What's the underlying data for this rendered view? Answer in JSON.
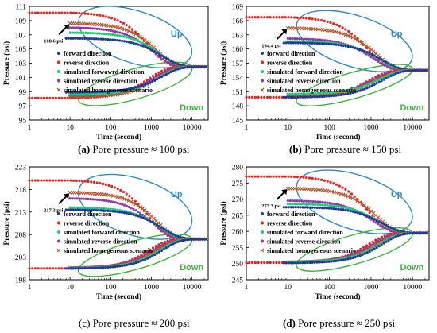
{
  "legend_labels": {
    "forward": "forward direction",
    "reverse": "reverse direction",
    "sim_forward": "simulated forward direction",
    "sim_reverse": "simulated reverse direction",
    "sim_homogeneous": "simulated homogeneous scenario"
  },
  "series_colors": {
    "forward": "#1f3a93",
    "reverse": "#e8221e",
    "sim_forward": "#22c97a",
    "sim_reverse": "#8e3aa8",
    "sim_homogeneous": "#b5532a"
  },
  "ellipse_colors": {
    "up": "#2e8bc0",
    "down": "#3fb23f"
  },
  "chart_data": [
    {
      "type": "scatter",
      "caption_letter": "(a)",
      "caption_text": " Pore pressure ≈ 100 psi",
      "xlabel": "Time (second)",
      "ylabel": "Pressure (psi)",
      "xscale": "log",
      "xlim": [
        1,
        25000
      ],
      "ylim": [
        95,
        111
      ],
      "xticks": [
        1,
        10,
        100,
        1000,
        10000
      ],
      "xtick_labels": [
        "1",
        "10",
        "100",
        "1000",
        "10000"
      ],
      "yticks": [
        95,
        97,
        99,
        101,
        103,
        105,
        107,
        109,
        111
      ],
      "ytick_labels": [
        "95",
        "97",
        "99",
        "101",
        "103",
        "105",
        "107",
        "109",
        "111"
      ],
      "legend_labels": [
        "forward direction",
        "reverse direction",
        "simulated forwawrd direction",
        "simulated reverse direction",
        "simulated homogeneous scenario"
      ],
      "annotation": "108.6 psi",
      "annotation_point": [
        10,
        108.6
      ],
      "up_label": "Up",
      "down_label": "Down",
      "final": 102.5,
      "up_series": {
        "reverse": 110.1,
        "sim_reverse": 108,
        "sim_homogeneous": 108.6,
        "sim_forward": 107.3,
        "forward": 106.5
      },
      "down_series": {
        "reverse": 98.1,
        "sim_reverse": 98.3,
        "sim_homogeneous": 98.2,
        "sim_forward": 98.6,
        "forward": 98.9
      }
    },
    {
      "type": "scatter",
      "caption_letter": "(b)",
      "caption_text": " Pore pressure ≈ 150 psi",
      "xlabel": "Time (second)",
      "ylabel": "Pressure (psi)",
      "xscale": "log",
      "xlim": [
        1,
        25000
      ],
      "ylim": [
        145,
        169
      ],
      "xticks": [
        1,
        10,
        100,
        1000,
        10000
      ],
      "xtick_labels": [
        "1",
        "10",
        "100",
        "1000",
        "10000"
      ],
      "yticks": [
        145,
        148,
        151,
        154,
        157,
        160,
        163,
        166,
        169
      ],
      "ytick_labels": [
        "145",
        "148",
        "151",
        "154",
        "157",
        "160",
        "163",
        "166",
        "169"
      ],
      "legend_labels": [
        "forward direction",
        "reverse direction",
        "simulated forward direction",
        "simulated reverse direction",
        "simulated homogeneous scenario"
      ],
      "annotation": "164.4 psi",
      "annotation_point": [
        10,
        164.4
      ],
      "up_label": "Up",
      "down_label": "Down",
      "final": 155.5,
      "up_series": {
        "reverse": 166.7,
        "sim_reverse": 162.2,
        "sim_homogeneous": 164.4,
        "sim_forward": 161.6,
        "forward": 161.3
      },
      "down_series": {
        "reverse": 149.8,
        "sim_reverse": 150.2,
        "sim_homogeneous": 150.0,
        "sim_forward": 150.5,
        "forward": 149.8
      }
    },
    {
      "type": "scatter",
      "caption_letter": "(c)",
      "caption_text": " Pore pressure ≈ 200 psi",
      "xlabel": "Time (second)",
      "ylabel": "Pressure (psi)",
      "xscale": "log",
      "xlim": [
        1,
        25000
      ],
      "ylim": [
        198,
        223
      ],
      "xticks": [
        1,
        10,
        100,
        1000,
        10000
      ],
      "xtick_labels": [
        "1",
        "10",
        "100",
        "1000",
        "10000"
      ],
      "yticks": [
        198,
        203,
        208,
        213,
        218,
        223
      ],
      "ytick_labels": [
        "198",
        "203",
        "208",
        "213",
        "218",
        "223"
      ],
      "legend_labels": [
        "forward direction",
        "reverse direction",
        "simulated forward direction",
        "simulated reverse direction",
        "simulated homogeneous scenario"
      ],
      "annotation": "217.3 psi",
      "annotation_point": [
        10,
        217.3
      ],
      "up_label": "Up",
      "down_label": "Down",
      "final": 207,
      "up_series": {
        "reverse": 220,
        "sim_reverse": 216,
        "sim_homogeneous": 217.3,
        "sim_forward": 214,
        "forward": 213.5
      },
      "down_series": {
        "reverse": 200.5,
        "sim_reverse": 200.7,
        "sim_homogeneous": 200.6,
        "sim_forward": 200.6,
        "forward": 200.5
      }
    },
    {
      "type": "scatter",
      "caption_letter": "(d)",
      "caption_text": " Pore pressure ≈ 250 psi",
      "xlabel": "Time (second)",
      "ylabel": "Pressure (psi)",
      "xscale": "log",
      "xlim": [
        1,
        25000
      ],
      "ylim": [
        245,
        280
      ],
      "xticks": [
        1,
        10,
        100,
        1000,
        10000
      ],
      "xtick_labels": [
        "1",
        "10",
        "100",
        "1000",
        "10000"
      ],
      "yticks": [
        245,
        250,
        255,
        260,
        265,
        270,
        275,
        280
      ],
      "ytick_labels": [
        "245",
        "250",
        "255",
        "260",
        "265",
        "270",
        "275",
        "280"
      ],
      "legend_labels": [
        "forward direction",
        "reverse direction",
        "simulated forward direction",
        "simulated reverse direction",
        "simulated homogeneous scenario"
      ],
      "annotation": "273.3 psi",
      "annotation_point": [
        10,
        273.3
      ],
      "up_label": "Up",
      "down_label": "Down",
      "final": 259.5,
      "up_series": {
        "reverse": 277,
        "sim_reverse": 269.5,
        "sim_homogeneous": 273.3,
        "sim_forward": 268.5,
        "forward": 267.5
      },
      "down_series": {
        "reverse": 250.3,
        "sim_reverse": 250.6,
        "sim_homogeneous": 250.4,
        "sim_forward": 250.5,
        "forward": 250.2
      }
    }
  ]
}
